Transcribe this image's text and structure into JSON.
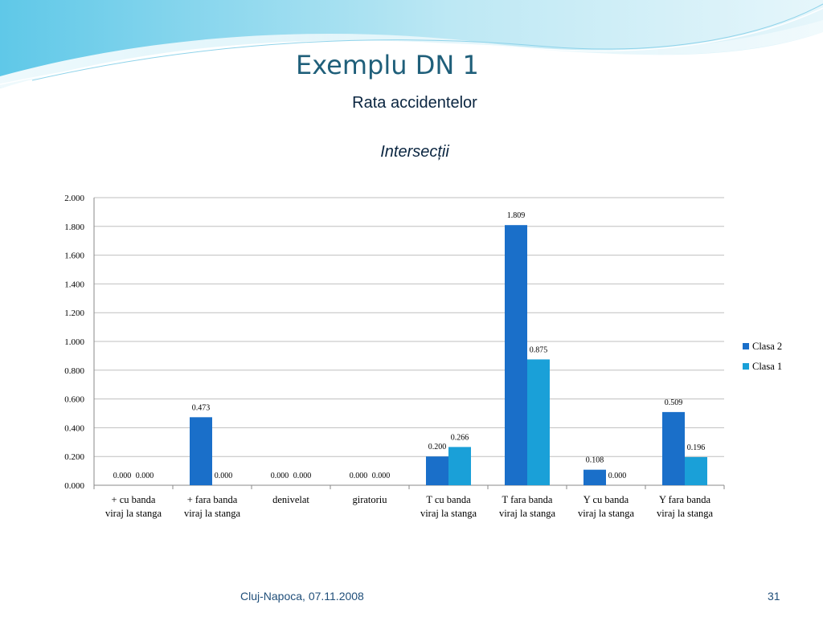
{
  "slide": {
    "title": "Exemplu DN 1",
    "subtitle": "Rata accidentelor",
    "footer_text": "Cluj-Napoca, 07.11.2008",
    "page_number": "31"
  },
  "colors": {
    "accent": "#1f5f7a",
    "series_clasa2": "#1a6fc9",
    "series_clasa1": "#1aa0d8",
    "gridline": "#bfbfbf"
  },
  "chart_data": {
    "type": "bar",
    "title": "Intersecții",
    "xlabel": "",
    "ylabel": "",
    "ylim": [
      0,
      2
    ],
    "yticks": [
      "0.000",
      "0.200",
      "0.400",
      "0.600",
      "0.800",
      "1.000",
      "1.200",
      "1.400",
      "1.600",
      "1.800",
      "2.000"
    ],
    "grid": true,
    "legend_position": "right",
    "categories": [
      [
        "+ cu banda",
        "viraj la stanga"
      ],
      [
        "+ fara banda",
        "viraj la stanga"
      ],
      [
        "denivelat"
      ],
      [
        "giratoriu"
      ],
      [
        "T cu banda",
        "viraj la stanga"
      ],
      [
        "T fara banda",
        "viraj la stanga"
      ],
      [
        "Y cu banda",
        "viraj la stanga"
      ],
      [
        "Y fara banda",
        "viraj la stanga"
      ]
    ],
    "series": [
      {
        "name": "Clasa 2",
        "values": [
          0,
          0.473,
          0,
          0,
          0.2,
          1.809,
          0.108,
          0.509
        ],
        "labels": [
          "0.000",
          "0.473",
          "0.000",
          "0.000",
          "0.200",
          "1.809",
          "0.108",
          "0.509"
        ]
      },
      {
        "name": "Clasa 1",
        "values": [
          0,
          0,
          0,
          0,
          0.266,
          0.875,
          0,
          0.196
        ],
        "labels": [
          "0.000",
          "0.000",
          "0.000",
          "0.000",
          "0.266",
          "0.875",
          "0.000",
          "0.196"
        ]
      }
    ]
  }
}
